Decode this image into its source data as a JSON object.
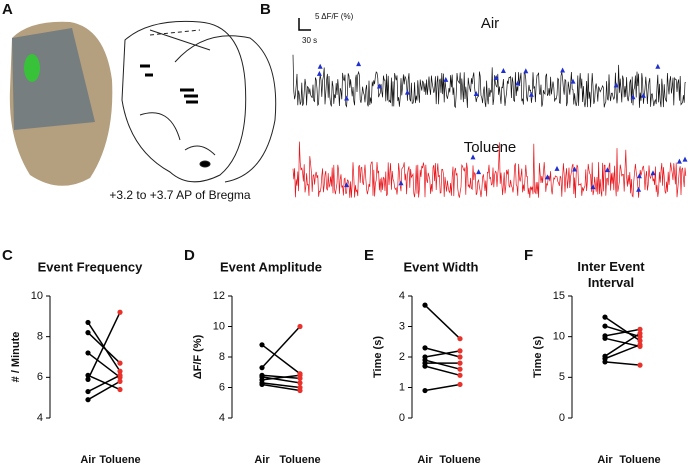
{
  "panels": {
    "a": {
      "letter": "A",
      "caption": "+3.2 to +3.7 AP of Bregma"
    },
    "b": {
      "letter": "B",
      "scale_y": "5 ΔF/F (%)",
      "scale_x": "30 s",
      "trace_1": "Air",
      "trace_2": "Toluene"
    }
  },
  "chart_data": [
    {
      "type": "line",
      "letter": "C",
      "title": "Event Frequency",
      "ylabel": "# / Minute",
      "categories": [
        "Air",
        "Toluene"
      ],
      "point_colors": [
        "#000000",
        "#e8322b"
      ],
      "line_color": "#000000",
      "ylim": [
        4,
        10
      ],
      "yticks": [
        4,
        6,
        8,
        10
      ],
      "series": [
        {
          "values": [
            8.7,
            6.3
          ]
        },
        {
          "values": [
            8.2,
            6.7
          ]
        },
        {
          "values": [
            7.2,
            6.0
          ]
        },
        {
          "values": [
            6.1,
            5.4
          ]
        },
        {
          "values": [
            5.9,
            9.2
          ]
        },
        {
          "values": [
            5.3,
            6.1
          ]
        },
        {
          "values": [
            4.9,
            5.8
          ]
        }
      ]
    },
    {
      "type": "line",
      "letter": "D",
      "title": "Event Amplitude",
      "ylabel": "ΔF/F (%)",
      "categories": [
        "Air",
        "Toluene"
      ],
      "point_colors": [
        "#000000",
        "#e8322b"
      ],
      "line_color": "#000000",
      "ylim": [
        4,
        12
      ],
      "yticks": [
        4,
        6,
        8,
        10,
        12
      ],
      "series": [
        {
          "values": [
            8.8,
            6.9
          ]
        },
        {
          "values": [
            7.3,
            10.0
          ]
        },
        {
          "values": [
            6.8,
            6.6
          ]
        },
        {
          "values": [
            6.7,
            6.3
          ]
        },
        {
          "values": [
            6.5,
            6.8
          ]
        },
        {
          "values": [
            6.3,
            6.0
          ]
        },
        {
          "values": [
            6.2,
            5.8
          ]
        }
      ]
    },
    {
      "type": "line",
      "letter": "E",
      "title": "Event Width",
      "ylabel": "Time (s)",
      "categories": [
        "Air",
        "Toluene"
      ],
      "point_colors": [
        "#000000",
        "#e8322b"
      ],
      "line_color": "#000000",
      "ylim": [
        0,
        4
      ],
      "yticks": [
        0,
        1,
        2,
        3,
        4
      ],
      "series": [
        {
          "values": [
            3.7,
            2.6
          ]
        },
        {
          "values": [
            2.3,
            2.0
          ]
        },
        {
          "values": [
            2.0,
            2.2
          ]
        },
        {
          "values": [
            1.9,
            1.6
          ]
        },
        {
          "values": [
            1.8,
            1.8
          ]
        },
        {
          "values": [
            1.7,
            1.4
          ]
        },
        {
          "values": [
            0.9,
            1.1
          ]
        }
      ]
    },
    {
      "type": "line",
      "letter": "F",
      "title": "Inter Event Interval",
      "ylabel": "Time (s)",
      "categories": [
        "Air",
        "Toluene"
      ],
      "point_colors": [
        "#000000",
        "#e8322b"
      ],
      "line_color": "#000000",
      "ylim": [
        0,
        15
      ],
      "yticks": [
        0,
        5,
        10,
        15
      ],
      "series": [
        {
          "values": [
            12.4,
            9.5
          ]
        },
        {
          "values": [
            11.3,
            10.0
          ]
        },
        {
          "values": [
            10.1,
            10.9
          ]
        },
        {
          "values": [
            9.8,
            8.8
          ]
        },
        {
          "values": [
            7.6,
            10.4
          ]
        },
        {
          "values": [
            7.3,
            9.0
          ]
        },
        {
          "values": [
            6.9,
            6.5
          ]
        }
      ]
    }
  ]
}
